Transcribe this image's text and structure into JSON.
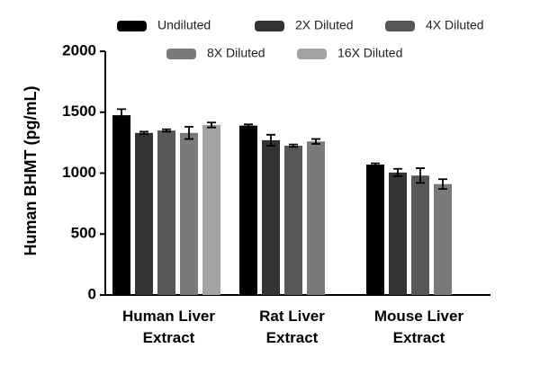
{
  "chart_data": {
    "type": "bar",
    "ylabel": "Human BHMT (pg/mL)",
    "categories": [
      "Human Liver Extract",
      "Rat Liver Extract",
      "Mouse Liver Extract"
    ],
    "series": [
      {
        "name": "Undiluted",
        "color": "#000000",
        "values": [
          1475,
          1390,
          1070
        ],
        "errors": [
          50,
          10,
          10
        ]
      },
      {
        "name": "2X Diluted",
        "color": "#333333",
        "values": [
          1330,
          1270,
          1005
        ],
        "errors": [
          10,
          45,
          30
        ]
      },
      {
        "name": "4X Diluted",
        "color": "#575757",
        "values": [
          1350,
          1225,
          980
        ],
        "errors": [
          10,
          10,
          60
        ]
      },
      {
        "name": "8X Diluted",
        "color": "#7a7a7a",
        "values": [
          1330,
          1260,
          910
        ],
        "errors": [
          50,
          20,
          40
        ]
      },
      {
        "name": "16X Diluted",
        "color": "#a3a3a3",
        "values": [
          1395,
          null,
          null
        ],
        "errors": [
          20,
          null,
          null
        ]
      }
    ],
    "ylim": [
      0,
      2000
    ],
    "yticks": [
      0,
      500,
      1000,
      1500,
      2000
    ]
  }
}
